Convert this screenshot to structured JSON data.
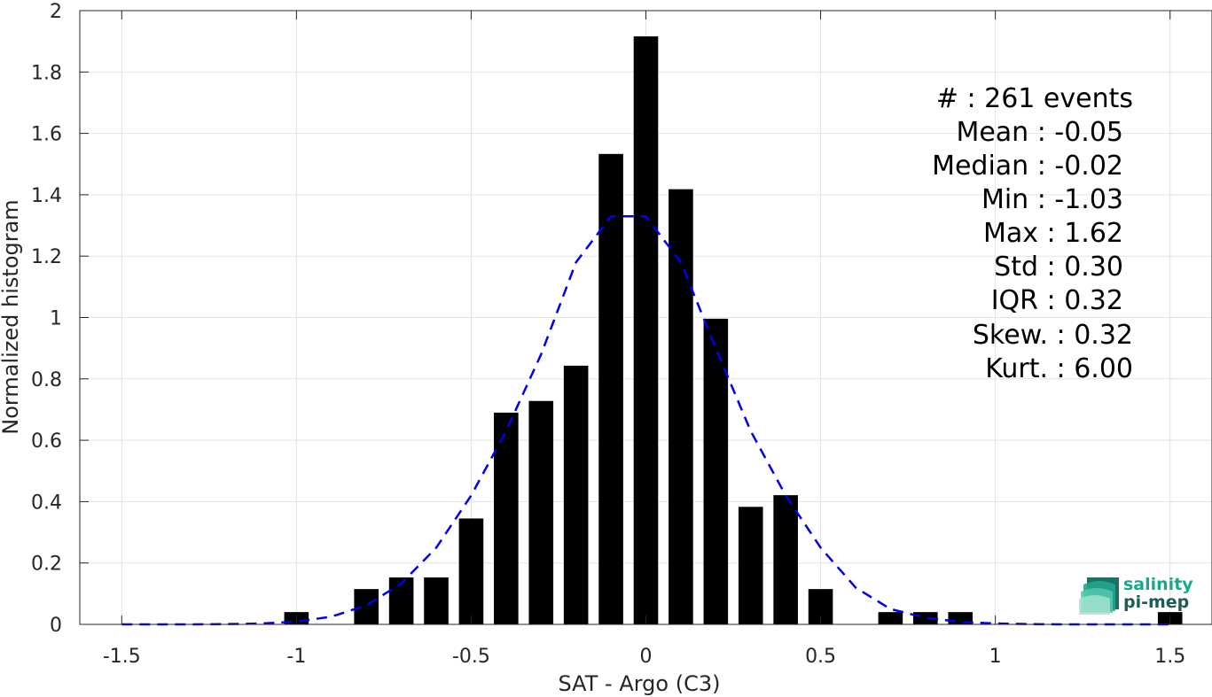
{
  "chart_data": {
    "type": "bar",
    "xlabel": "SAT - Argo (C3)",
    "ylabel": "Normalized histogram",
    "xlim": [
      -1.62,
      1.62
    ],
    "ylim": [
      0,
      2
    ],
    "grid": true,
    "xticks": [
      -1.5,
      -1,
      -0.5,
      0,
      0.5,
      1,
      1.5
    ],
    "xtick_labels": [
      "-1.5",
      "-1",
      "-0.5",
      "0",
      "0.5",
      "1",
      "1.5"
    ],
    "yticks": [
      0,
      0.2,
      0.4,
      0.6,
      0.8,
      1,
      1.2,
      1.4,
      1.6,
      1.8,
      2
    ],
    "ytick_labels": [
      "0",
      "0.2",
      "0.4",
      "0.6",
      "0.8",
      "1",
      "1.2",
      "1.4",
      "1.6",
      "1.8",
      "2"
    ],
    "bar_width": 0.07,
    "bars": {
      "x": [
        -1.0,
        -0.8,
        -0.7,
        -0.6,
        -0.5,
        -0.4,
        -0.3,
        -0.2,
        -0.1,
        0.0,
        0.1,
        0.2,
        0.3,
        0.4,
        0.5,
        0.7,
        0.8,
        0.9,
        1.5
      ],
      "values": [
        0.04,
        0.115,
        0.153,
        0.153,
        0.345,
        0.69,
        0.728,
        0.843,
        1.533,
        1.916,
        1.418,
        0.996,
        0.383,
        0.421,
        0.115,
        0.04,
        0.04,
        0.04,
        0.04
      ],
      "color": "#000000"
    },
    "fit_curve": {
      "style": "dashed",
      "color": "#0000ee",
      "x": [
        -1.5,
        -1.4,
        -1.3,
        -1.2,
        -1.1,
        -1.0,
        -0.9,
        -0.8,
        -0.7,
        -0.6,
        -0.5,
        -0.4,
        -0.3,
        -0.2,
        -0.1,
        0.0,
        0.1,
        0.2,
        0.3,
        0.4,
        0.5,
        0.6,
        0.7,
        0.8,
        0.9,
        1.0,
        1.1,
        1.2,
        1.3,
        1.4,
        1.5
      ],
      "y": [
        0.0,
        0.0,
        0.0,
        0.001,
        0.003,
        0.009,
        0.025,
        0.062,
        0.133,
        0.25,
        0.42,
        0.63,
        0.88,
        1.18,
        1.33,
        1.33,
        1.18,
        0.9,
        0.63,
        0.42,
        0.25,
        0.12,
        0.05,
        0.022,
        0.008,
        0.003,
        0.001,
        0.0,
        0.0,
        0.0,
        0.0
      ]
    },
    "stats": [
      "#  : 261 events",
      "Mean : -0.05",
      "Median : -0.02",
      "Min : -1.03",
      "Max : 1.62",
      "Std : 0.30",
      "IQR : 0.32",
      "Skew. : 0.32",
      "Kurt. : 6.00"
    ]
  },
  "logo": {
    "line1": "salinity",
    "line2": "pi-mep",
    "color1": "#1aa88c",
    "color2": "#1b5e55"
  }
}
